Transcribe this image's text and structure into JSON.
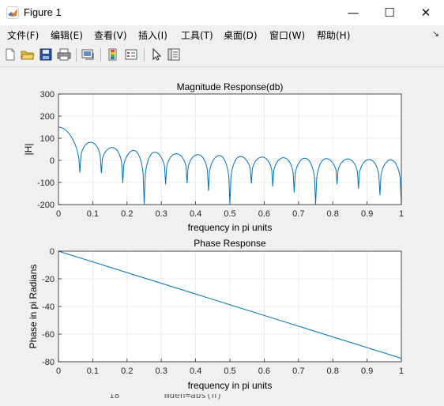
{
  "window": {
    "title": "Figure 1",
    "minimize_glyph": "—",
    "maximize_glyph": "☐",
    "close_glyph": "✕"
  },
  "menu": {
    "items": [
      "文件(F)",
      "编辑(E)",
      "查看(V)",
      "插入(I)",
      "工具(T)",
      "桌面(D)",
      "窗口(W)",
      "帮助(H)"
    ],
    "overflow_glyph": "↘"
  },
  "toolbar": {
    "buttons": [
      "new-figure-icon",
      "open-file-icon",
      "save-icon",
      "print-icon",
      "link-plot-icon",
      "insert-colorbar-icon",
      "insert-legend-icon",
      "edit-plot-icon",
      "property-editor-icon"
    ]
  },
  "colors": {
    "line": "#0072bd",
    "axes_bg": "#ffffff",
    "grid": "#e6e6e6",
    "figure_bg": "#f0f0f0"
  },
  "chart_data": [
    {
      "type": "line",
      "title": "Magnitude Response(db)",
      "xlabel": "frequency in pi units",
      "ylabel": "|H|",
      "xlim": [
        0,
        1
      ],
      "ylim": [
        -200,
        300
      ],
      "xticks": [
        "0",
        "0.1",
        "0.2",
        "0.3",
        "0.4",
        "0.5",
        "0.6",
        "0.7",
        "0.8",
        "0.9",
        "1"
      ],
      "yticks": [
        "300",
        "200",
        "100",
        "0",
        "-100",
        "-200"
      ],
      "grid": true,
      "series": [
        {
          "style": "periodic lobes with nulls",
          "mainlobe_peak_db": 150,
          "null_spacing": 0.0625,
          "sidelobe_peaks_db": [
            82,
            58,
            45,
            37,
            30,
            26,
            22,
            18,
            15,
            12,
            10,
            8,
            6,
            4,
            2
          ],
          "null_depths_db": [
            -55,
            -58,
            -103,
            -200,
            -108,
            -103,
            -138,
            -200,
            -105,
            -118,
            -145,
            -200,
            -108,
            -128,
            -158,
            -195
          ]
        }
      ]
    },
    {
      "type": "line",
      "title": "Phase Response",
      "xlabel": "frequency in pi units",
      "ylabel": "Phase in pi Radians",
      "xlim": [
        0,
        1
      ],
      "ylim": [
        -80,
        0
      ],
      "xticks": [
        "0",
        "0.1",
        "0.2",
        "0.3",
        "0.4",
        "0.5",
        "0.6",
        "0.7",
        "0.8",
        "0.9",
        "1"
      ],
      "yticks": [
        "0",
        "-20",
        "-40",
        "-60",
        "-80"
      ],
      "grid": true,
      "series": [
        {
          "x": [
            0,
            1
          ],
          "y": [
            0,
            -77.5
          ]
        }
      ]
    }
  ],
  "background_text": {
    "fragment_left": "18",
    "fragment_right": "mden=abs(h)"
  }
}
